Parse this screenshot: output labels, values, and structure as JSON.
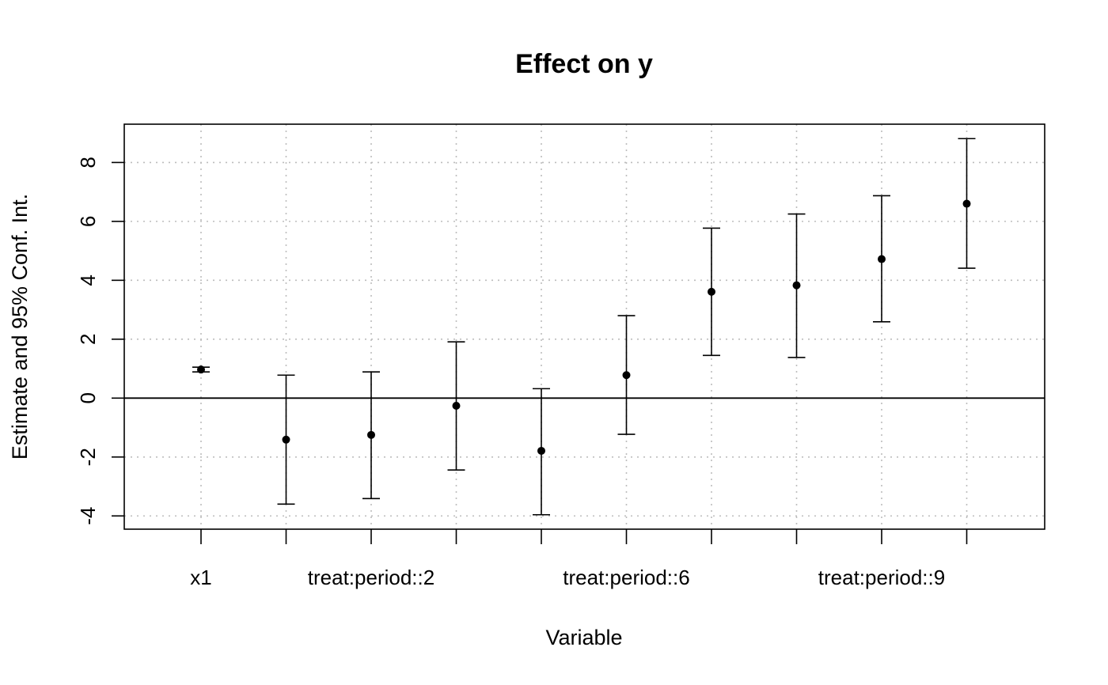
{
  "chart_data": {
    "type": "errorbar",
    "title": "Effect on y",
    "xlabel": "Variable",
    "ylabel": "Estimate and 95% Conf. Int.",
    "categories": [
      "x1",
      "",
      "treat:period::2",
      "",
      "",
      "treat:period::6",
      "",
      "",
      "treat:period::9",
      ""
    ],
    "estimates": [
      0.97,
      -1.41,
      -1.25,
      -0.26,
      -1.79,
      0.78,
      3.61,
      3.83,
      4.72,
      6.6
    ],
    "ci_lower": [
      0.89,
      -3.6,
      -3.41,
      -2.44,
      -3.96,
      -1.23,
      1.45,
      1.38,
      2.59,
      4.41
    ],
    "ci_upper": [
      1.05,
      0.78,
      0.89,
      1.91,
      0.32,
      2.8,
      5.77,
      6.25,
      6.87,
      8.81
    ],
    "y_ticks": [
      "-4",
      "-2",
      "0",
      "2",
      "4",
      "6",
      "8"
    ],
    "ylim": [
      -4.45,
      9.3
    ],
    "reference_line": 0,
    "grid": true
  }
}
